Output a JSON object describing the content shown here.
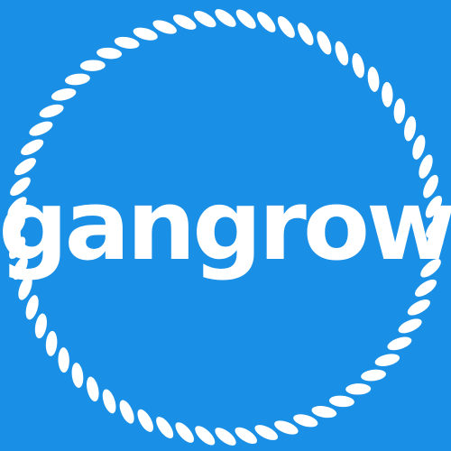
{
  "logo": {
    "wordmark": "gangrow",
    "background_color": "#1a8fe6",
    "foreground_color": "#ffffff",
    "border_style": "rope-ring"
  }
}
